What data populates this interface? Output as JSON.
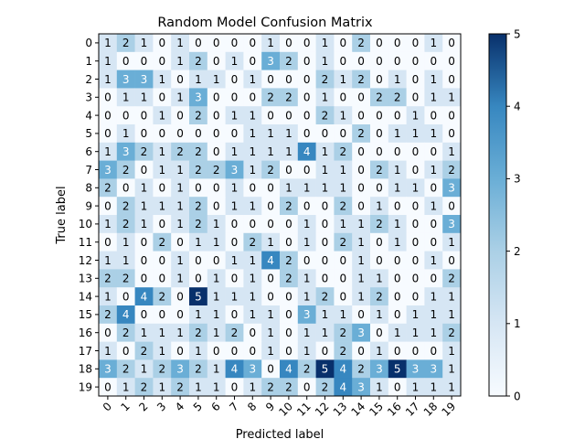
{
  "chart_data": {
    "type": "heatmap",
    "title": "Random Model Confusion Matrix",
    "xlabel": "Predicted label",
    "ylabel": "True label",
    "x_categories": [
      "0",
      "1",
      "2",
      "3",
      "4",
      "5",
      "6",
      "7",
      "8",
      "9",
      "10",
      "11",
      "12",
      "13",
      "14",
      "15",
      "16",
      "17",
      "18",
      "19"
    ],
    "y_categories": [
      "0",
      "1",
      "2",
      "3",
      "4",
      "5",
      "6",
      "7",
      "8",
      "9",
      "10",
      "11",
      "12",
      "13",
      "14",
      "15",
      "16",
      "17",
      "18",
      "19"
    ],
    "matrix": [
      [
        1,
        2,
        1,
        0,
        1,
        0,
        0,
        0,
        0,
        1,
        0,
        0,
        1,
        0,
        2,
        0,
        0,
        0,
        1,
        0
      ],
      [
        1,
        0,
        0,
        0,
        1,
        2,
        0,
        1,
        0,
        3,
        2,
        0,
        1,
        0,
        0,
        0,
        0,
        0,
        0,
        0
      ],
      [
        1,
        3,
        3,
        1,
        0,
        1,
        1,
        0,
        1,
        0,
        0,
        0,
        2,
        1,
        2,
        0,
        1,
        0,
        1,
        0
      ],
      [
        0,
        1,
        1,
        0,
        1,
        3,
        0,
        0,
        0,
        2,
        2,
        0,
        1,
        0,
        0,
        2,
        2,
        0,
        1,
        1
      ],
      [
        0,
        0,
        0,
        1,
        0,
        2,
        0,
        1,
        1,
        0,
        0,
        0,
        2,
        1,
        0,
        0,
        0,
        1,
        0,
        0
      ],
      [
        0,
        1,
        0,
        0,
        0,
        0,
        0,
        0,
        1,
        1,
        1,
        0,
        0,
        0,
        2,
        0,
        1,
        1,
        1,
        0
      ],
      [
        1,
        3,
        2,
        1,
        2,
        2,
        0,
        1,
        1,
        1,
        1,
        4,
        1,
        2,
        0,
        0,
        0,
        0,
        0,
        1
      ],
      [
        3,
        2,
        0,
        1,
        1,
        2,
        2,
        3,
        1,
        2,
        0,
        0,
        1,
        1,
        0,
        2,
        1,
        0,
        1,
        2
      ],
      [
        2,
        0,
        1,
        0,
        1,
        0,
        0,
        1,
        0,
        0,
        1,
        1,
        1,
        1,
        0,
        0,
        1,
        1,
        0,
        3
      ],
      [
        0,
        2,
        1,
        1,
        1,
        2,
        0,
        1,
        1,
        0,
        2,
        0,
        0,
        2,
        0,
        1,
        0,
        0,
        1,
        0
      ],
      [
        1,
        2,
        1,
        0,
        1,
        2,
        1,
        0,
        0,
        0,
        0,
        1,
        0,
        1,
        1,
        2,
        1,
        0,
        0,
        3
      ],
      [
        0,
        1,
        0,
        2,
        0,
        1,
        1,
        0,
        2,
        1,
        0,
        1,
        0,
        2,
        1,
        0,
        1,
        0,
        0,
        1
      ],
      [
        1,
        1,
        0,
        0,
        1,
        0,
        0,
        1,
        1,
        4,
        2,
        0,
        0,
        0,
        1,
        0,
        0,
        0,
        1,
        0
      ],
      [
        2,
        2,
        0,
        0,
        1,
        0,
        1,
        0,
        1,
        0,
        2,
        1,
        0,
        0,
        1,
        1,
        0,
        0,
        0,
        2
      ],
      [
        1,
        0,
        4,
        2,
        0,
        5,
        1,
        1,
        1,
        0,
        0,
        1,
        2,
        0,
        1,
        2,
        0,
        0,
        1,
        1
      ],
      [
        2,
        4,
        0,
        0,
        0,
        1,
        1,
        0,
        1,
        1,
        0,
        3,
        1,
        1,
        0,
        1,
        0,
        1,
        1,
        1
      ],
      [
        0,
        2,
        1,
        1,
        1,
        2,
        1,
        2,
        0,
        1,
        0,
        1,
        1,
        2,
        3,
        0,
        1,
        1,
        1,
        2
      ],
      [
        1,
        0,
        2,
        1,
        0,
        1,
        0,
        0,
        0,
        1,
        0,
        1,
        0,
        2,
        0,
        1,
        0,
        0,
        0,
        1
      ],
      [
        3,
        2,
        1,
        2,
        3,
        2,
        1,
        4,
        3,
        0,
        4,
        2,
        5,
        4,
        2,
        3,
        5,
        3,
        3,
        1
      ],
      [
        0,
        1,
        2,
        1,
        2,
        1,
        1,
        0,
        1,
        2,
        2,
        0,
        2,
        4,
        3,
        1,
        0,
        1,
        1,
        1
      ]
    ],
    "colormap": "Blues",
    "vmin": 0,
    "vmax": 5,
    "colorbar_ticks": [
      0,
      1,
      2,
      3,
      4,
      5
    ],
    "x_tick_rotation_deg": 45,
    "grid": false
  }
}
